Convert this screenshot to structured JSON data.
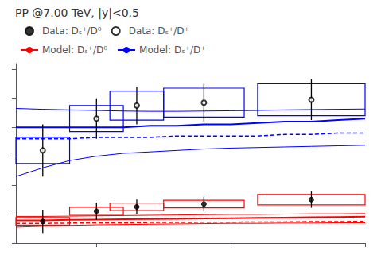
{
  "chart_data": {
    "type": "line",
    "title": "PP @7.00 TeV, |y|<0.5",
    "xlim": [
      2,
      15
    ],
    "ylim": [
      0.1,
      0.72
    ],
    "xticks": [
      5,
      10,
      15
    ],
    "yticks": [
      0.1,
      0.2,
      0.3,
      0.4,
      0.5,
      0.6,
      0.7
    ],
    "tick_labels": false,
    "grid": false,
    "legend": "upper left",
    "series": [
      {
        "name": "Data: Dₛ⁺/D⁰",
        "type": "scatter",
        "color": "black",
        "marker": "circle",
        "box_color": "red",
        "x": [
          3.0,
          5.0,
          6.5,
          9.0,
          13.0
        ],
        "values": [
          0.175,
          0.21,
          0.225,
          0.235,
          0.25
        ],
        "yerr": [
          0.04,
          0.03,
          0.025,
          0.025,
          0.028
        ],
        "box_xlow": [
          2.0,
          4.0,
          5.5,
          7.5,
          11.0
        ],
        "box_xhigh": [
          4.0,
          6.0,
          7.5,
          10.5,
          15.0
        ],
        "box_ylow": [
          0.162,
          0.196,
          0.212,
          0.222,
          0.232
        ],
        "box_yhigh": [
          0.188,
          0.224,
          0.238,
          0.248,
          0.268
        ]
      },
      {
        "name": "Data: Dₛ⁺/D⁺",
        "type": "scatter",
        "color": "black",
        "marker": "open circle",
        "box_color": "blue",
        "x": [
          3.0,
          5.0,
          6.5,
          9.0,
          13.0
        ],
        "values": [
          0.42,
          0.53,
          0.575,
          0.585,
          0.595
        ],
        "yerr": [
          0.09,
          0.07,
          0.065,
          0.065,
          0.07
        ],
        "box_xlow": [
          2.0,
          4.0,
          5.5,
          7.5,
          11.0
        ],
        "box_xhigh": [
          4.0,
          6.0,
          7.5,
          10.5,
          15.0
        ],
        "box_ylow": [
          0.375,
          0.485,
          0.525,
          0.535,
          0.54
        ],
        "box_yhigh": [
          0.465,
          0.575,
          0.625,
          0.635,
          0.65
        ]
      },
      {
        "name": "Model: Dₛ⁺/D⁰",
        "type": "line",
        "color": "red",
        "line_style": "solid",
        "x": [
          2,
          3,
          4,
          5,
          6,
          7,
          8,
          9,
          10,
          11,
          12,
          13,
          14,
          15
        ],
        "values": [
          0.178,
          0.178,
          0.18,
          0.181,
          0.182,
          0.183,
          0.184,
          0.185,
          0.186,
          0.187,
          0.188,
          0.189,
          0.19,
          0.191
        ],
        "y_dashed": [
          0.168,
          0.168,
          0.169,
          0.17,
          0.17,
          0.171,
          0.171,
          0.172,
          0.172,
          0.173,
          0.173,
          0.174,
          0.174,
          0.175
        ],
        "y_upper": [
          0.192,
          0.192,
          0.193,
          0.194,
          0.195,
          0.196,
          0.197,
          0.198,
          0.199,
          0.199,
          0.2,
          0.201,
          0.201,
          0.202
        ],
        "y_lower": [
          0.155,
          0.158,
          0.161,
          0.163,
          0.164,
          0.165,
          0.166,
          0.167,
          0.168,
          0.168,
          0.169,
          0.169,
          0.17,
          0.17
        ]
      },
      {
        "name": "Model: Dₛ⁺/D⁺",
        "type": "line",
        "color": "blue",
        "line_style": "solid",
        "x": [
          2,
          3,
          4,
          5,
          6,
          7,
          8,
          9,
          10,
          11,
          12,
          13,
          14,
          15
        ],
        "values": [
          0.5,
          0.5,
          0.5,
          0.5,
          0.5,
          0.505,
          0.505,
          0.51,
          0.51,
          0.515,
          0.52,
          0.52,
          0.525,
          0.53
        ],
        "y_dashed": [
          0.46,
          0.46,
          0.46,
          0.465,
          0.465,
          0.465,
          0.47,
          0.47,
          0.47,
          0.47,
          0.475,
          0.475,
          0.48,
          0.48
        ],
        "y_upper": [
          0.565,
          0.562,
          0.56,
          0.558,
          0.556,
          0.555,
          0.555,
          0.556,
          0.557,
          0.558,
          0.56,
          0.561,
          0.562,
          0.563
        ],
        "y_lower": [
          0.33,
          0.36,
          0.385,
          0.4,
          0.41,
          0.415,
          0.42,
          0.425,
          0.428,
          0.43,
          0.432,
          0.434,
          0.436,
          0.438
        ]
      }
    ]
  }
}
